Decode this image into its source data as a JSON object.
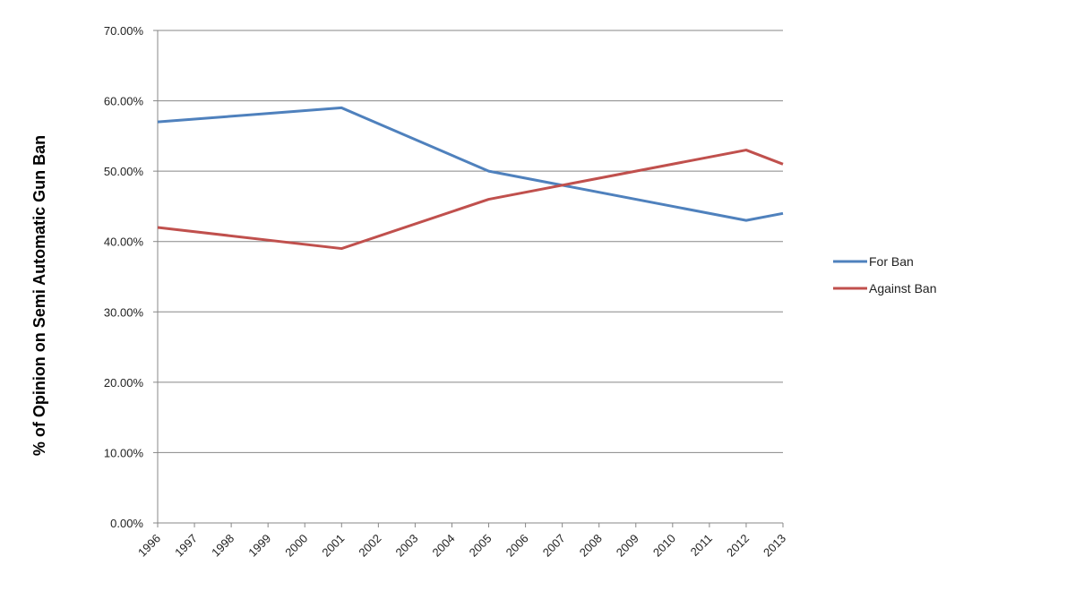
{
  "chart_data": {
    "type": "line",
    "title": "",
    "xlabel": "",
    "ylabel": "% of Opinion on Semi Automatic Gun Ban",
    "categories": [
      "1996",
      "1997",
      "1998",
      "1999",
      "2000",
      "2001",
      "2002",
      "2003",
      "2004",
      "2005",
      "2006",
      "2007",
      "2008",
      "2009",
      "2010",
      "2011",
      "2012",
      "2013"
    ],
    "ylim": [
      0,
      0.7
    ],
    "yticks": [
      "0.00%",
      "10.00%",
      "20.00%",
      "30.00%",
      "40.00%",
      "50.00%",
      "60.00%",
      "70.00%"
    ],
    "grid": "horizontal",
    "legend_position": "right",
    "series": [
      {
        "name": "For Ban",
        "color": "#4F81BD",
        "values": [
          0.57,
          null,
          null,
          null,
          null,
          0.59,
          null,
          null,
          null,
          0.5,
          null,
          null,
          null,
          null,
          null,
          null,
          0.43,
          0.44
        ]
      },
      {
        "name": "Against Ban",
        "color": "#C0504D",
        "values": [
          0.42,
          null,
          null,
          null,
          null,
          0.39,
          null,
          null,
          null,
          0.46,
          null,
          null,
          null,
          null,
          null,
          null,
          0.53,
          0.51
        ]
      }
    ]
  }
}
